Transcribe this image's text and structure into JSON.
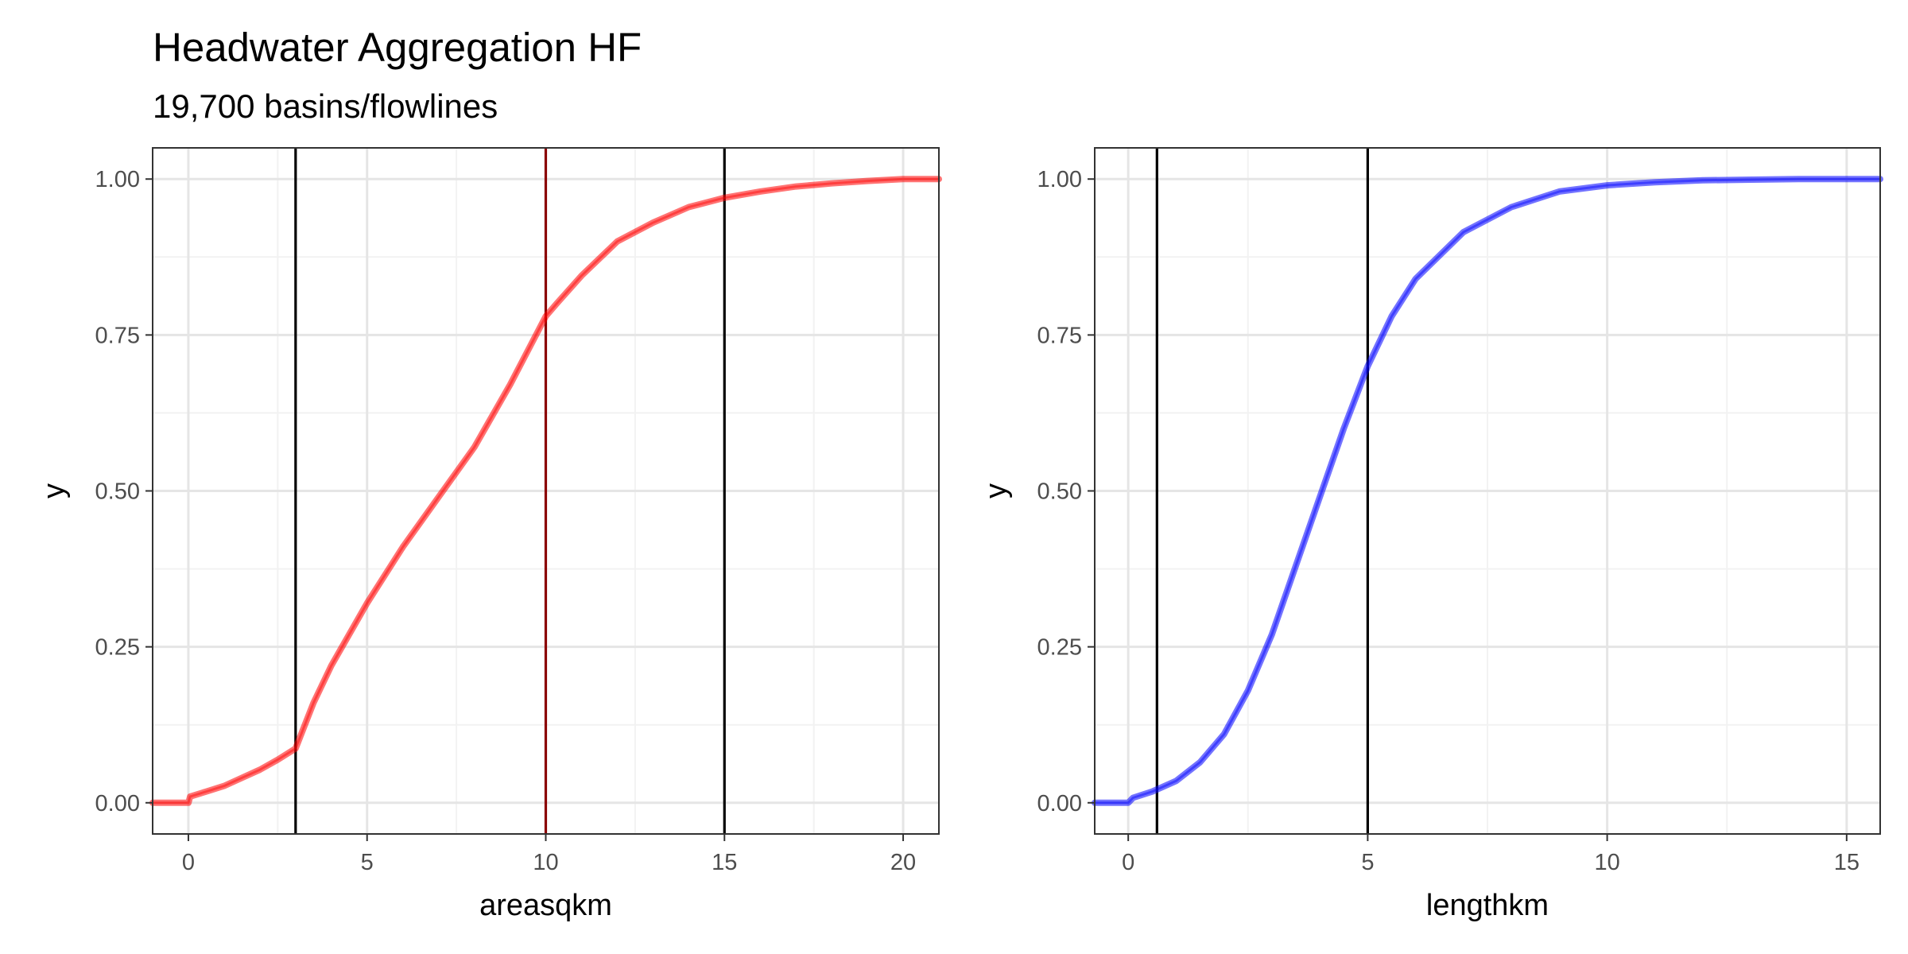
{
  "title": "Headwater Aggregation HF",
  "subtitle": "19,700 basins/flowlines",
  "chart_data": [
    {
      "type": "line",
      "xlabel": "areasqkm",
      "ylabel": "y",
      "xlim": [
        -1,
        21
      ],
      "ylim": [
        -0.05,
        1.05
      ],
      "x_ticks": [
        0,
        5,
        10,
        15,
        20
      ],
      "x_tick_labels": [
        "0",
        "5",
        "10",
        "15",
        "20"
      ],
      "y_ticks": [
        0,
        0.25,
        0.5,
        0.75,
        1.0
      ],
      "y_tick_labels": [
        "0.00",
        "0.25",
        "0.50",
        "0.75",
        "1.00"
      ],
      "grid": true,
      "line_color": "#ff0000",
      "vlines": [
        {
          "x": 3,
          "color": "#000000"
        },
        {
          "x": 10,
          "color": "#8b0000"
        },
        {
          "x": 15,
          "color": "#000000"
        }
      ],
      "series": [
        {
          "x": [
            -1,
            0,
            0.05,
            0.5,
            1,
            1.5,
            2,
            2.5,
            3,
            3.5,
            4,
            5,
            6,
            7,
            8,
            9,
            10,
            10.3,
            11,
            12,
            13,
            14,
            15,
            16,
            17,
            18,
            19,
            20,
            21
          ],
          "y": [
            0,
            0,
            0.01,
            0.018,
            0.027,
            0.04,
            0.053,
            0.069,
            0.087,
            0.16,
            0.22,
            0.32,
            0.41,
            0.49,
            0.57,
            0.67,
            0.78,
            0.8,
            0.845,
            0.9,
            0.93,
            0.955,
            0.97,
            0.98,
            0.988,
            0.993,
            0.997,
            1.0,
            1.0
          ]
        }
      ]
    },
    {
      "type": "line",
      "xlabel": "lengthkm",
      "ylabel": "y",
      "xlim": [
        -0.7,
        15.7
      ],
      "ylim": [
        -0.05,
        1.05
      ],
      "x_ticks": [
        0,
        5,
        10,
        15
      ],
      "x_tick_labels": [
        "0",
        "5",
        "10",
        "15"
      ],
      "y_ticks": [
        0,
        0.25,
        0.5,
        0.75,
        1.0
      ],
      "y_tick_labels": [
        "0.00",
        "0.25",
        "0.50",
        "0.75",
        "1.00"
      ],
      "grid": true,
      "line_color": "#0000ff",
      "vlines": [
        {
          "x": 0.6,
          "color": "#000000"
        },
        {
          "x": 5,
          "color": "#000000"
        }
      ],
      "series": [
        {
          "x": [
            -0.7,
            0,
            0.1,
            0.5,
            1,
            1.5,
            2,
            2.5,
            3,
            3.5,
            4,
            4.5,
            5,
            5.5,
            6,
            7,
            8,
            9,
            10,
            11,
            12,
            13,
            14,
            15,
            15.7
          ],
          "y": [
            0,
            0,
            0.008,
            0.018,
            0.035,
            0.065,
            0.11,
            0.18,
            0.27,
            0.38,
            0.49,
            0.6,
            0.7,
            0.78,
            0.84,
            0.915,
            0.955,
            0.98,
            0.99,
            0.995,
            0.998,
            0.999,
            1.0,
            1.0,
            1.0
          ]
        }
      ]
    }
  ]
}
